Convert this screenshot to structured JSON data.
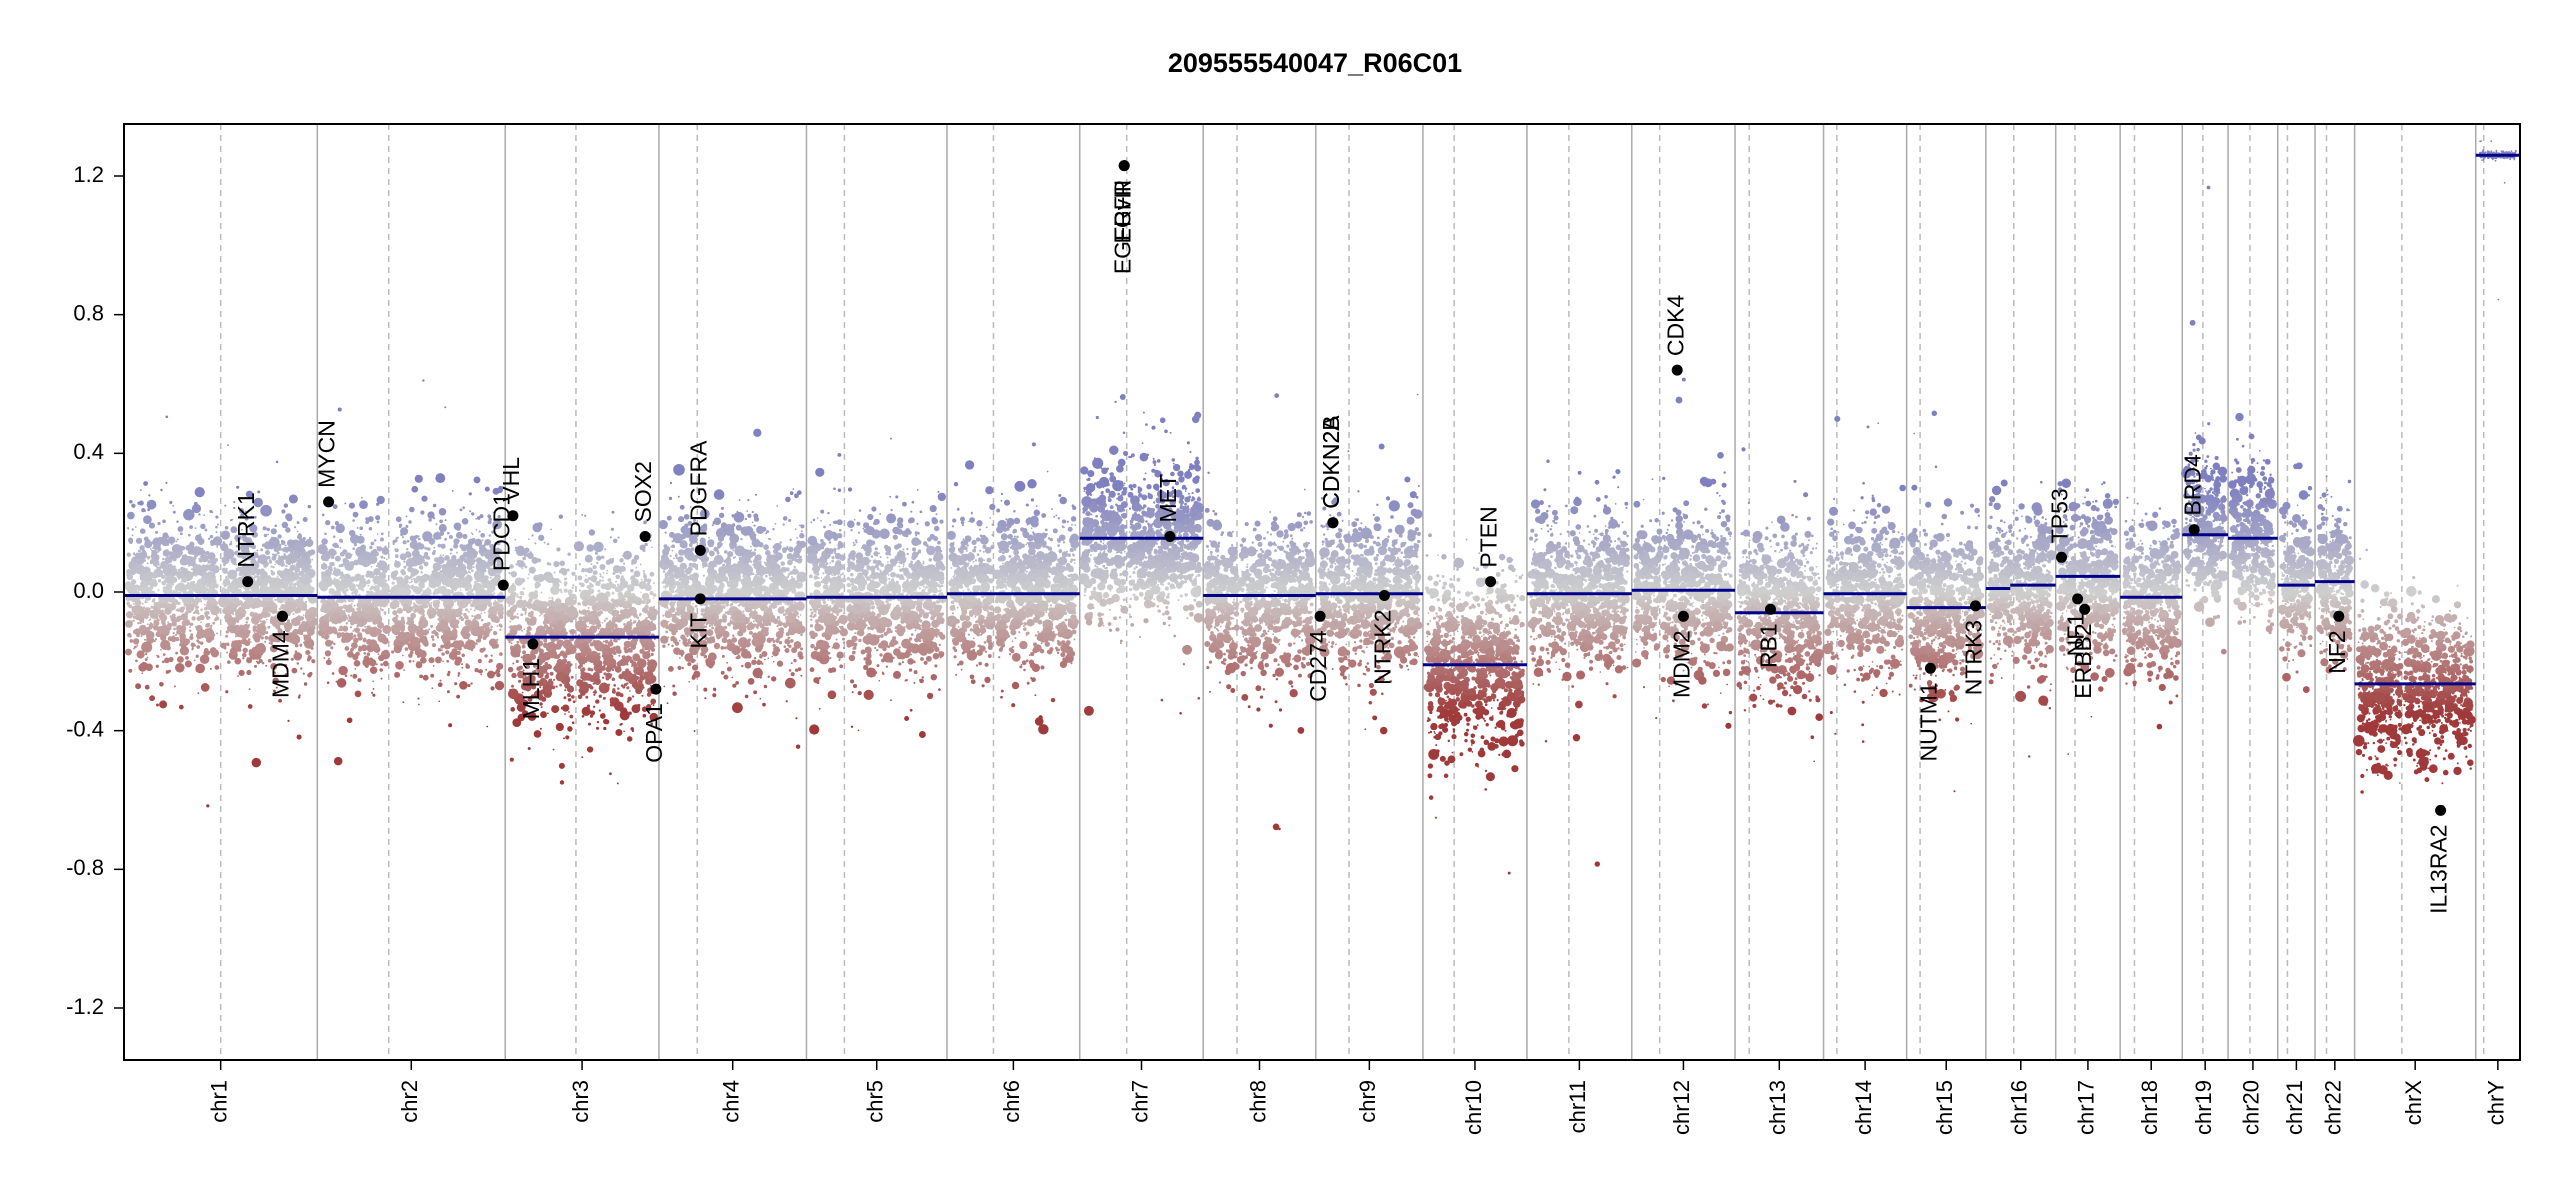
{
  "chart_data": {
    "type": "scatter",
    "title": "209555540047_R06C01",
    "xlabel": "",
    "ylabel": "",
    "ylim": [
      -1.35,
      1.35
    ],
    "yticks": [
      -1.2,
      -0.8,
      -0.4,
      0.0,
      0.4,
      0.8,
      1.2
    ],
    "ytick_labels": [
      "-1.2",
      "-0.8",
      "-0.4",
      "0.0",
      "0.4",
      "0.8",
      "1.2"
    ],
    "grid": false,
    "colors": {
      "gain": "#7f80bf",
      "neutral": "#cfcfcf",
      "loss": "#a03a3a",
      "segment": "#00008b",
      "border": "#000000"
    },
    "chromosomes": [
      {
        "name": "chr1",
        "len": 249,
        "centromere": 0.5,
        "segments": [
          {
            "from": 0,
            "to": 1,
            "value": -0.01
          }
        ],
        "noise": {
          "mean": -0.01,
          "sd": 0.11
        }
      },
      {
        "name": "chr2",
        "len": 242,
        "centromere": 0.38,
        "segments": [
          {
            "from": 0,
            "to": 1,
            "value": -0.015
          }
        ],
        "noise": {
          "mean": -0.015,
          "sd": 0.11
        }
      },
      {
        "name": "chr3",
        "len": 198,
        "centromere": 0.46,
        "segments": [
          {
            "from": 0,
            "to": 1,
            "value": -0.13
          }
        ],
        "noise": {
          "mean": -0.13,
          "sd": 0.12
        }
      },
      {
        "name": "chr4",
        "len": 190,
        "centromere": 0.26,
        "segments": [
          {
            "from": 0,
            "to": 1,
            "value": -0.02
          }
        ],
        "noise": {
          "mean": -0.02,
          "sd": 0.11
        }
      },
      {
        "name": "chr5",
        "len": 181,
        "centromere": 0.27,
        "segments": [
          {
            "from": 0,
            "to": 1,
            "value": -0.015
          }
        ],
        "noise": {
          "mean": -0.015,
          "sd": 0.11
        }
      },
      {
        "name": "chr6",
        "len": 171,
        "centromere": 0.35,
        "segments": [
          {
            "from": 0,
            "to": 1,
            "value": -0.005
          }
        ],
        "noise": {
          "mean": 0.0,
          "sd": 0.11
        }
      },
      {
        "name": "chr7",
        "len": 159,
        "centromere": 0.38,
        "segments": [
          {
            "from": 0,
            "to": 1,
            "value": 0.155
          }
        ],
        "noise": {
          "mean": 0.15,
          "sd": 0.11
        }
      },
      {
        "name": "chr8",
        "len": 145,
        "centromere": 0.3,
        "segments": [
          {
            "from": 0,
            "to": 1,
            "value": -0.01
          }
        ],
        "noise": {
          "mean": -0.02,
          "sd": 0.11
        }
      },
      {
        "name": "chr9",
        "len": 138,
        "centromere": 0.31,
        "segments": [
          {
            "from": 0,
            "to": 1,
            "value": -0.005
          }
        ],
        "noise": {
          "mean": 0.0,
          "sd": 0.11
        }
      },
      {
        "name": "chr10",
        "len": 134,
        "centromere": 0.3,
        "segments": [
          {
            "from": 0,
            "to": 1,
            "value": -0.21
          }
        ],
        "noise": {
          "mean": -0.21,
          "sd": 0.13
        }
      },
      {
        "name": "chr11",
        "len": 135,
        "centromere": 0.4,
        "segments": [
          {
            "from": 0,
            "to": 1,
            "value": -0.005
          }
        ],
        "noise": {
          "mean": 0.0,
          "sd": 0.11
        }
      },
      {
        "name": "chr12",
        "len": 133,
        "centromere": 0.27,
        "segments": [
          {
            "from": 0,
            "to": 1,
            "value": 0.005
          }
        ],
        "noise": {
          "mean": 0.0,
          "sd": 0.11
        }
      },
      {
        "name": "chr13",
        "len": 114,
        "centromere": 0.16,
        "segments": [
          {
            "from": 0,
            "to": 1,
            "value": -0.06
          }
        ],
        "noise": {
          "mean": -0.06,
          "sd": 0.11
        }
      },
      {
        "name": "chr14",
        "len": 107,
        "centromere": 0.16,
        "segments": [
          {
            "from": 0,
            "to": 1,
            "value": -0.005
          }
        ],
        "noise": {
          "mean": -0.01,
          "sd": 0.11
        }
      },
      {
        "name": "chr15",
        "len": 102,
        "centromere": 0.17,
        "segments": [
          {
            "from": 0,
            "to": 1,
            "value": -0.045
          }
        ],
        "noise": {
          "mean": -0.05,
          "sd": 0.11
        }
      },
      {
        "name": "chr16",
        "len": 90,
        "centromere": 0.4,
        "segments": [
          {
            "from": 0,
            "to": 0.35,
            "value": 0.01
          },
          {
            "from": 0.35,
            "to": 1,
            "value": 0.02
          }
        ],
        "noise": {
          "mean": 0.01,
          "sd": 0.11
        }
      },
      {
        "name": "chr17",
        "len": 83,
        "centromere": 0.3,
        "segments": [
          {
            "from": 0,
            "to": 1,
            "value": 0.045
          }
        ],
        "noise": {
          "mean": 0.03,
          "sd": 0.11
        }
      },
      {
        "name": "chr18",
        "len": 80,
        "centromere": 0.23,
        "segments": [
          {
            "from": 0,
            "to": 1,
            "value": -0.015
          }
        ],
        "noise": {
          "mean": -0.02,
          "sd": 0.11
        }
      },
      {
        "name": "chr19",
        "len": 59,
        "centromere": 0.45,
        "segments": [
          {
            "from": 0,
            "to": 1,
            "value": 0.165
          }
        ],
        "noise": {
          "mean": 0.18,
          "sd": 0.11
        }
      },
      {
        "name": "chr20",
        "len": 64,
        "centromere": 0.44,
        "segments": [
          {
            "from": 0,
            "to": 1,
            "value": 0.155
          }
        ],
        "noise": {
          "mean": 0.16,
          "sd": 0.11
        }
      },
      {
        "name": "chr21",
        "len": 48,
        "centromere": 0.26,
        "segments": [
          {
            "from": 0,
            "to": 1,
            "value": 0.02
          }
        ],
        "noise": {
          "mean": 0.02,
          "sd": 0.11
        }
      },
      {
        "name": "chr22",
        "len": 51,
        "centromere": 0.29,
        "segments": [
          {
            "from": 0,
            "to": 1,
            "value": 0.03
          }
        ],
        "noise": {
          "mean": 0.03,
          "sd": 0.11
        }
      },
      {
        "name": "chrX",
        "len": 156,
        "centromere": 0.39,
        "segments": [
          {
            "from": 0,
            "to": 1,
            "value": -0.265
          }
        ],
        "noise": {
          "mean": -0.27,
          "sd": 0.11
        }
      },
      {
        "name": "chrY",
        "len": 57,
        "centromere": 0.18,
        "segments": [
          {
            "from": 0,
            "to": 1,
            "value": 1.26
          }
        ],
        "noise": {
          "mean": 1.26,
          "sd": 0.005
        }
      }
    ],
    "genes": [
      {
        "label": "NTRK1",
        "chr": "chr1",
        "pos": 0.64,
        "value": 0.03,
        "side": "up"
      },
      {
        "label": "MDM4",
        "chr": "chr1",
        "pos": 0.82,
        "value": -0.07,
        "side": "down"
      },
      {
        "label": "MYCN",
        "chr": "chr2",
        "pos": 0.06,
        "value": 0.26,
        "side": "up"
      },
      {
        "label": "PDCD1",
        "chr": "chr2",
        "pos": 0.99,
        "value": 0.02,
        "side": "up"
      },
      {
        "label": "VHL",
        "chr": "chr3",
        "pos": 0.05,
        "value": 0.22,
        "side": "up"
      },
      {
        "label": "MLH1",
        "chr": "chr3",
        "pos": 0.18,
        "value": -0.15,
        "side": "down"
      },
      {
        "label": "SOX2",
        "chr": "chr3",
        "pos": 0.91,
        "value": 0.16,
        "side": "up"
      },
      {
        "label": "OPA1",
        "chr": "chr3",
        "pos": 0.98,
        "value": -0.28,
        "side": "down"
      },
      {
        "label": "PDGFRA",
        "chr": "chr4",
        "pos": 0.28,
        "value": 0.12,
        "side": "up"
      },
      {
        "label": "KIT",
        "chr": "chr4",
        "pos": 0.28,
        "value": -0.02,
        "side": "down"
      },
      {
        "label": "EGFR",
        "chr": "chr7",
        "pos": 0.36,
        "value": 1.23,
        "side": "down"
      },
      {
        "label": "EGFRvIII",
        "chr": "chr7",
        "pos": 0.36,
        "value": 1.23,
        "side": "down"
      },
      {
        "label": "MET",
        "chr": "chr7",
        "pos": 0.73,
        "value": 0.16,
        "side": "up"
      },
      {
        "label": "CD274",
        "chr": "chr9",
        "pos": 0.04,
        "value": -0.07,
        "side": "down"
      },
      {
        "label": "CDKN2A",
        "chr": "chr9",
        "pos": 0.16,
        "value": 0.2,
        "side": "up"
      },
      {
        "label": "CDKN2B",
        "chr": "chr9",
        "pos": 0.16,
        "value": 0.2,
        "side": "up"
      },
      {
        "label": "NTRK2",
        "chr": "chr9",
        "pos": 0.64,
        "value": -0.01,
        "side": "down"
      },
      {
        "label": "PTEN",
        "chr": "chr10",
        "pos": 0.65,
        "value": 0.03,
        "side": "up"
      },
      {
        "label": "CDK4",
        "chr": "chr12",
        "pos": 0.44,
        "value": 0.64,
        "side": "up"
      },
      {
        "label": "MDM2",
        "chr": "chr12",
        "pos": 0.5,
        "value": -0.07,
        "side": "down"
      },
      {
        "label": "RB1",
        "chr": "chr13",
        "pos": 0.4,
        "value": -0.05,
        "side": "down"
      },
      {
        "label": "NUTM1",
        "chr": "chr15",
        "pos": 0.3,
        "value": -0.22,
        "side": "down"
      },
      {
        "label": "NTRK3",
        "chr": "chr15",
        "pos": 0.87,
        "value": -0.04,
        "side": "down"
      },
      {
        "label": "TP53",
        "chr": "chr17",
        "pos": 0.09,
        "value": 0.1,
        "side": "up"
      },
      {
        "label": "NF1",
        "chr": "chr17",
        "pos": 0.34,
        "value": -0.02,
        "side": "down"
      },
      {
        "label": "ERBB2",
        "chr": "chr17",
        "pos": 0.45,
        "value": -0.05,
        "side": "down"
      },
      {
        "label": "BRD4",
        "chr": "chr19",
        "pos": 0.26,
        "value": 0.18,
        "side": "up"
      },
      {
        "label": "NF2",
        "chr": "chr22",
        "pos": 0.6,
        "value": -0.07,
        "side": "down"
      },
      {
        "label": "IL13RA2",
        "chr": "chrX",
        "pos": 0.71,
        "value": -0.63,
        "side": "down"
      }
    ]
  }
}
